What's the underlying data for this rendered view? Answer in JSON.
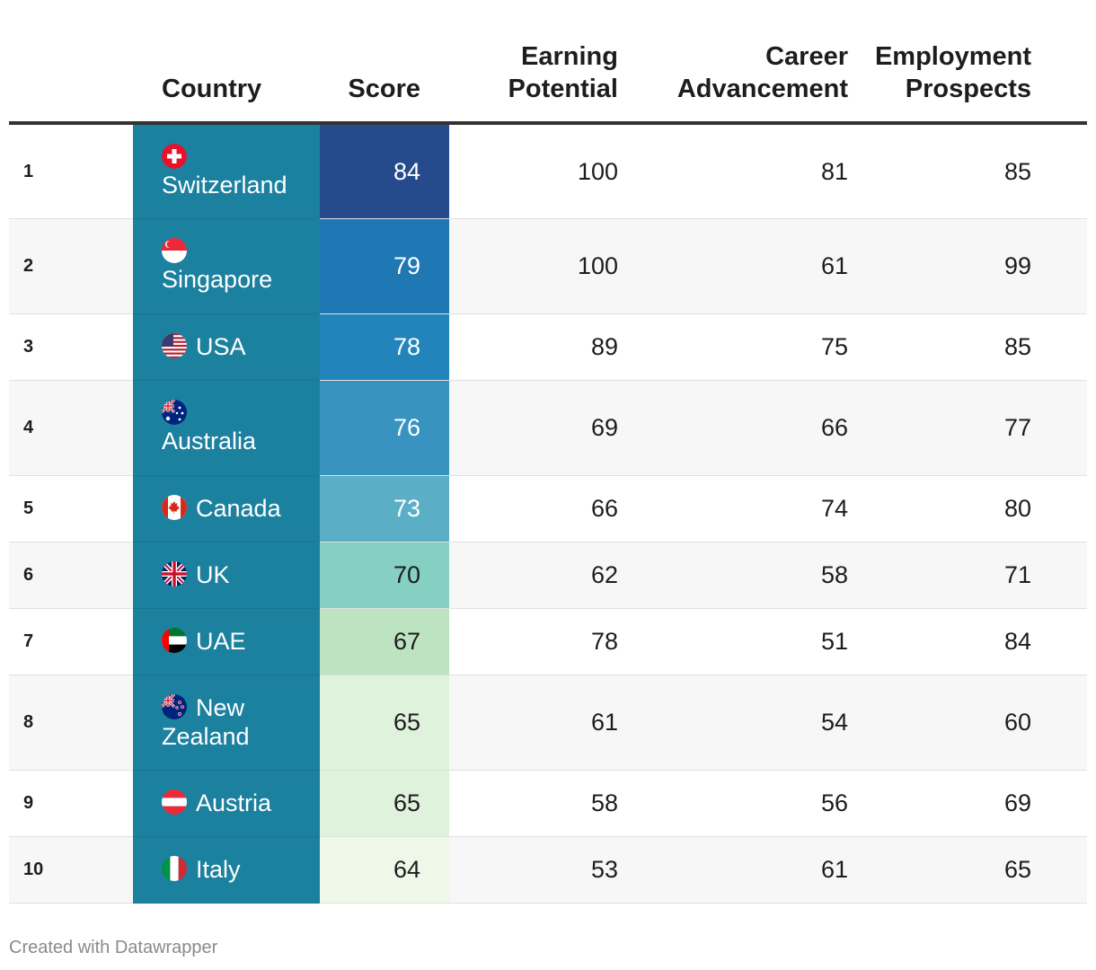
{
  "chart_data": {
    "type": "table",
    "columns": [
      "",
      "Country",
      "Score",
      "Earning Potential",
      "Career Advancement",
      "Employment Prospects"
    ],
    "rows": [
      {
        "rank": "1",
        "country": "Switzerland",
        "flag": "switzerland-flag-icon",
        "score": "84",
        "earning": "100",
        "career": "81",
        "employment": "85",
        "score_color": "#264b8c",
        "score_text": "#ffffff",
        "wrap": true
      },
      {
        "rank": "2",
        "country": "Singapore",
        "flag": "singapore-flag-icon",
        "score": "79",
        "earning": "100",
        "career": "61",
        "employment": "99",
        "score_color": "#1f78b4",
        "score_text": "#ffffff",
        "wrap": true
      },
      {
        "rank": "3",
        "country": "USA",
        "flag": "usa-flag-icon",
        "score": "78",
        "earning": "89",
        "career": "75",
        "employment": "85",
        "score_color": "#2384bb",
        "score_text": "#ffffff",
        "wrap": false
      },
      {
        "rank": "4",
        "country": "Australia",
        "flag": "australia-flag-icon",
        "score": "76",
        "earning": "69",
        "career": "66",
        "employment": "77",
        "score_color": "#3893c0",
        "score_text": "#ffffff",
        "wrap": true
      },
      {
        "rank": "5",
        "country": "Canada",
        "flag": "canada-flag-icon",
        "score": "73",
        "earning": "66",
        "career": "74",
        "employment": "80",
        "score_color": "#5aafc7",
        "score_text": "#ffffff",
        "wrap": false
      },
      {
        "rank": "6",
        "country": "UK",
        "flag": "uk-flag-icon",
        "score": "70",
        "earning": "62",
        "career": "58",
        "employment": "71",
        "score_color": "#85cfc3",
        "score_text": "#1d1d1d",
        "wrap": false
      },
      {
        "rank": "7",
        "country": "UAE",
        "flag": "uae-flag-icon",
        "score": "67",
        "earning": "78",
        "career": "51",
        "employment": "84",
        "score_color": "#bde4c1",
        "score_text": "#1d1d1d",
        "wrap": false
      },
      {
        "rank": "8",
        "country": "New Zealand",
        "flag": "new-zealand-flag-icon",
        "score": "65",
        "earning": "61",
        "career": "54",
        "employment": "60",
        "score_color": "#dff2db",
        "score_text": "#1d1d1d",
        "wrap": false
      },
      {
        "rank": "9",
        "country": "Austria",
        "flag": "austria-flag-icon",
        "score": "65",
        "earning": "58",
        "career": "56",
        "employment": "69",
        "score_color": "#dff2db",
        "score_text": "#1d1d1d",
        "wrap": false
      },
      {
        "rank": "10",
        "country": "Italy",
        "flag": "italy-flag-icon",
        "score": "64",
        "earning": "53",
        "career": "61",
        "employment": "65",
        "score_color": "#eef8e9",
        "score_text": "#1d1d1d",
        "wrap": false
      }
    ]
  },
  "header": {
    "country": "Country",
    "score": "Score",
    "earning_1": "Earning",
    "earning_2": "Potential",
    "career_1": "Career",
    "career_2": "Advancement",
    "employment_1": "Employment",
    "employment_2": "Prospects"
  },
  "footer": {
    "credit": "Created with Datawrapper"
  }
}
